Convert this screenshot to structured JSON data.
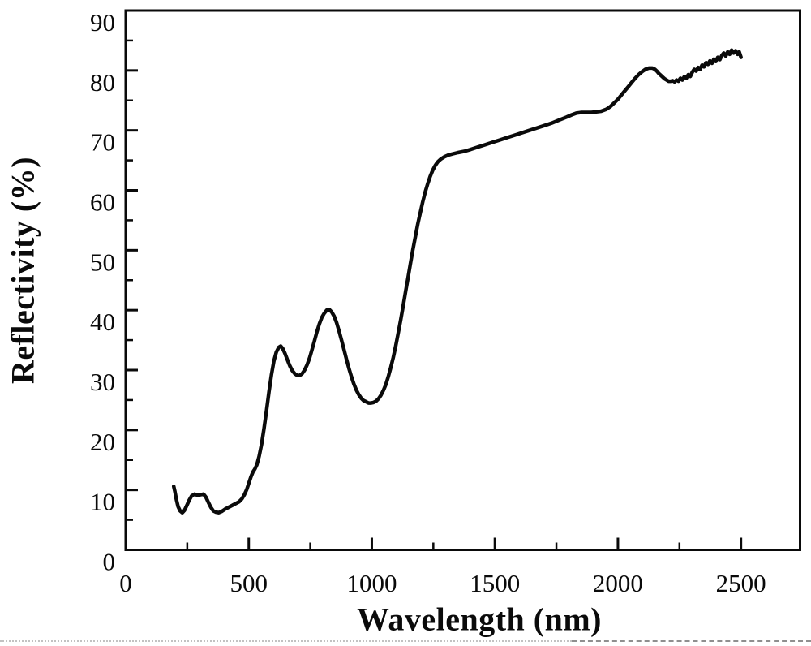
{
  "figure": {
    "background": "#ffffff",
    "curve_color": "#0a0a0a",
    "axis_color": "#0a0a0a"
  },
  "chart_data": {
    "type": "line",
    "title": "",
    "xlabel": "Wavelength (nm)",
    "ylabel": "Reflectivity (%)",
    "xlim": [
      0,
      2740
    ],
    "ylim": [
      0,
      90
    ],
    "grid": false,
    "legend": "none",
    "x_major_ticks": [
      0,
      500,
      1000,
      1500,
      2000,
      2500
    ],
    "x_minor_ticks": [
      250,
      750,
      1250,
      1750,
      2250
    ],
    "y_major_ticks": [
      0,
      10,
      20,
      30,
      40,
      50,
      60,
      70,
      80,
      90
    ],
    "y_minor_ticks": [
      5,
      15,
      25,
      35,
      45,
      55,
      65,
      75,
      85
    ],
    "series": [
      {
        "name": "reflectivity",
        "color": "#0a0a0a",
        "points": [
          [
            195,
            10.6
          ],
          [
            200,
            9.7
          ],
          [
            206,
            8.4
          ],
          [
            213,
            7.2
          ],
          [
            221,
            6.5
          ],
          [
            230,
            6.2
          ],
          [
            239,
            6.6
          ],
          [
            248,
            7.4
          ],
          [
            258,
            8.3
          ],
          [
            268,
            9.0
          ],
          [
            280,
            9.3
          ],
          [
            292,
            9.1
          ],
          [
            304,
            9.2
          ],
          [
            316,
            9.3
          ],
          [
            326,
            8.8
          ],
          [
            336,
            7.9
          ],
          [
            346,
            7.1
          ],
          [
            356,
            6.5
          ],
          [
            366,
            6.3
          ],
          [
            378,
            6.2
          ],
          [
            390,
            6.4
          ],
          [
            404,
            6.8
          ],
          [
            418,
            7.1
          ],
          [
            432,
            7.4
          ],
          [
            446,
            7.7
          ],
          [
            460,
            8.0
          ],
          [
            472,
            8.5
          ],
          [
            482,
            9.2
          ],
          [
            492,
            10.1
          ],
          [
            501,
            11.2
          ],
          [
            509,
            12.2
          ],
          [
            517,
            13.0
          ],
          [
            525,
            13.5
          ],
          [
            533,
            14.2
          ],
          [
            542,
            15.6
          ],
          [
            552,
            17.6
          ],
          [
            562,
            20.2
          ],
          [
            572,
            23.2
          ],
          [
            582,
            26.3
          ],
          [
            592,
            29.2
          ],
          [
            602,
            31.5
          ],
          [
            612,
            33.0
          ],
          [
            622,
            33.8
          ],
          [
            630,
            34.0
          ],
          [
            638,
            33.6
          ],
          [
            647,
            32.8
          ],
          [
            657,
            31.7
          ],
          [
            667,
            30.7
          ],
          [
            677,
            29.9
          ],
          [
            687,
            29.4
          ],
          [
            697,
            29.1
          ],
          [
            707,
            29.1
          ],
          [
            717,
            29.4
          ],
          [
            727,
            30.0
          ],
          [
            737,
            30.9
          ],
          [
            747,
            32.0
          ],
          [
            757,
            33.4
          ],
          [
            767,
            34.9
          ],
          [
            777,
            36.4
          ],
          [
            787,
            37.7
          ],
          [
            797,
            38.8
          ],
          [
            807,
            39.5
          ],
          [
            817,
            40.0
          ],
          [
            827,
            40.1
          ],
          [
            837,
            39.7
          ],
          [
            847,
            39.0
          ],
          [
            857,
            37.9
          ],
          [
            867,
            36.5
          ],
          [
            877,
            35.0
          ],
          [
            887,
            33.4
          ],
          [
            897,
            31.8
          ],
          [
            907,
            30.3
          ],
          [
            917,
            28.9
          ],
          [
            927,
            27.7
          ],
          [
            937,
            26.7
          ],
          [
            947,
            25.9
          ],
          [
            957,
            25.3
          ],
          [
            967,
            24.9
          ],
          [
            977,
            24.7
          ],
          [
            987,
            24.5
          ],
          [
            997,
            24.5
          ],
          [
            1007,
            24.6
          ],
          [
            1017,
            24.8
          ],
          [
            1027,
            25.2
          ],
          [
            1037,
            25.8
          ],
          [
            1047,
            26.6
          ],
          [
            1057,
            27.6
          ],
          [
            1067,
            28.9
          ],
          [
            1077,
            30.4
          ],
          [
            1087,
            32.1
          ],
          [
            1097,
            34.0
          ],
          [
            1107,
            36.1
          ],
          [
            1117,
            38.3
          ],
          [
            1127,
            40.6
          ],
          [
            1137,
            43.0
          ],
          [
            1147,
            45.4
          ],
          [
            1157,
            47.8
          ],
          [
            1167,
            50.1
          ],
          [
            1177,
            52.3
          ],
          [
            1187,
            54.4
          ],
          [
            1197,
            56.3
          ],
          [
            1207,
            58.1
          ],
          [
            1217,
            59.7
          ],
          [
            1227,
            61.1
          ],
          [
            1237,
            62.3
          ],
          [
            1247,
            63.3
          ],
          [
            1257,
            64.1
          ],
          [
            1267,
            64.7
          ],
          [
            1280,
            65.2
          ],
          [
            1295,
            65.6
          ],
          [
            1312,
            65.9
          ],
          [
            1330,
            66.1
          ],
          [
            1350,
            66.3
          ],
          [
            1375,
            66.5
          ],
          [
            1400,
            66.8
          ],
          [
            1430,
            67.2
          ],
          [
            1460,
            67.6
          ],
          [
            1490,
            68.0
          ],
          [
            1520,
            68.4
          ],
          [
            1550,
            68.8
          ],
          [
            1580,
            69.2
          ],
          [
            1610,
            69.6
          ],
          [
            1640,
            70.0
          ],
          [
            1670,
            70.4
          ],
          [
            1700,
            70.8
          ],
          [
            1730,
            71.2
          ],
          [
            1760,
            71.7
          ],
          [
            1790,
            72.2
          ],
          [
            1812,
            72.6
          ],
          [
            1832,
            72.9
          ],
          [
            1852,
            73.0
          ],
          [
            1872,
            73.0
          ],
          [
            1892,
            73.0
          ],
          [
            1912,
            73.1
          ],
          [
            1932,
            73.2
          ],
          [
            1952,
            73.5
          ],
          [
            1970,
            74.0
          ],
          [
            1985,
            74.6
          ],
          [
            2000,
            75.2
          ],
          [
            2014,
            75.9
          ],
          [
            2028,
            76.6
          ],
          [
            2042,
            77.3
          ],
          [
            2056,
            78.0
          ],
          [
            2070,
            78.7
          ],
          [
            2084,
            79.3
          ],
          [
            2098,
            79.8
          ],
          [
            2112,
            80.2
          ],
          [
            2126,
            80.4
          ],
          [
            2140,
            80.4
          ],
          [
            2150,
            80.2
          ],
          [
            2158,
            79.9
          ],
          [
            2166,
            79.5
          ],
          [
            2174,
            79.2
          ],
          [
            2182,
            78.9
          ],
          [
            2190,
            78.6
          ],
          [
            2198,
            78.4
          ],
          [
            2206,
            78.2
          ],
          [
            2214,
            78.2
          ],
          [
            2222,
            78.3
          ],
          [
            2230,
            78.1
          ],
          [
            2238,
            78.4
          ],
          [
            2246,
            78.2
          ],
          [
            2254,
            78.7
          ],
          [
            2262,
            78.4
          ],
          [
            2270,
            79.0
          ],
          [
            2278,
            78.7
          ],
          [
            2286,
            79.3
          ],
          [
            2294,
            79.0
          ],
          [
            2302,
            79.7
          ],
          [
            2310,
            80.2
          ],
          [
            2318,
            79.9
          ],
          [
            2326,
            80.5
          ],
          [
            2334,
            80.2
          ],
          [
            2342,
            80.9
          ],
          [
            2350,
            80.6
          ],
          [
            2358,
            81.3
          ],
          [
            2366,
            81.0
          ],
          [
            2374,
            81.6
          ],
          [
            2382,
            81.2
          ],
          [
            2390,
            81.9
          ],
          [
            2398,
            81.5
          ],
          [
            2406,
            82.2
          ],
          [
            2414,
            81.8
          ],
          [
            2422,
            82.5
          ],
          [
            2430,
            82.9
          ],
          [
            2438,
            82.4
          ],
          [
            2446,
            83.1
          ],
          [
            2454,
            82.7
          ],
          [
            2462,
            83.4
          ],
          [
            2470,
            82.9
          ],
          [
            2478,
            83.3
          ],
          [
            2486,
            82.7
          ],
          [
            2493,
            83.1
          ],
          [
            2500,
            82.2
          ]
        ]
      }
    ]
  }
}
